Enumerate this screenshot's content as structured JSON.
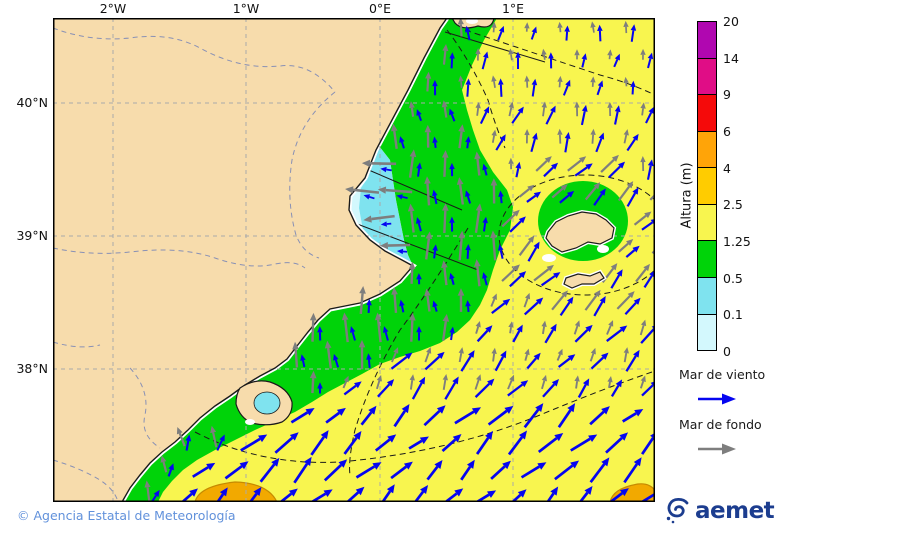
{
  "axes": {
    "x_tick_labels": [
      "2°W",
      "1°W",
      "0°E",
      "1°E"
    ],
    "y_tick_labels": [
      "40°N",
      "39°N",
      "38°N"
    ]
  },
  "colorbar": {
    "title": "Altura (m)",
    "tick_labels": [
      "20",
      "14",
      "9",
      "6",
      "4",
      "2.5",
      "1.25",
      "0.5",
      "0.1",
      "0"
    ],
    "colors_top_to_bottom": [
      "#B007B0",
      "#E00D86",
      "#F50A0A",
      "#FFA408",
      "#FFCC00",
      "#F8F54F",
      "#00D309",
      "#7FE3EF",
      "#D3F8FD"
    ]
  },
  "legend": {
    "wind_sea_label": "Mar de viento",
    "wind_sea_arrow_color": "#0505F0",
    "swell_label": "Mar de fondo",
    "swell_arrow_color": "#7E7E7E"
  },
  "footer": {
    "copyright": "© Agencia Estatal de Meteorología"
  },
  "branding": {
    "logo_text": "aemet",
    "logo_color": "#1C3D8F"
  },
  "map": {
    "land_color": "#F7DCAC",
    "sea_color_rough": "#F8F54F",
    "sea_color_moderate": "#00D309",
    "sea_color_light": "#7FE3EF",
    "sea_color_calm": "#D3F8FD",
    "sea_color_very_rough": "#F2A900",
    "grid_color": "#AAAAAA",
    "border_color": "#8890B5"
  },
  "vector_field": {
    "note": "blue = mar de viento (wind sea), gray = mar de fondo (swell); deg: 0=E,90=N",
    "regions": {
      "bay": {
        "blue": [
          175,
          10,
          1.8
        ],
        "gray": [
          181,
          30,
          2.6
        ]
      },
      "coastal": {
        "blue": [
          95,
          13,
          2.0
        ],
        "gray": [
          90,
          26,
          2.4
        ]
      },
      "coastal_north": {
        "blue": [
          100,
          14,
          2.0
        ],
        "gray": [
          92,
          18,
          2.2
        ]
      },
      "offshore_north": {
        "blue": [
          80,
          16,
          2.0
        ],
        "gray": [
          92,
          11,
          1.7
        ]
      },
      "offshore_mid": {
        "blue": [
          68,
          18,
          2.1
        ],
        "gray": [
          85,
          13,
          1.8
        ]
      },
      "island": {
        "blue": [
          48,
          20,
          2.2
        ],
        "gray": [
          46,
          22,
          2.2
        ]
      },
      "offshore_east": {
        "blue": [
          50,
          23,
          2.3
        ],
        "gray": [
          75,
          14,
          1.9
        ]
      },
      "south": {
        "blue": [
          44,
          27,
          2.7
        ],
        "gray": null
      },
      "south_coastal": {
        "blue": [
          70,
          16,
          2.1
        ],
        "gray": [
          105,
          20,
          2.2
        ]
      }
    }
  }
}
